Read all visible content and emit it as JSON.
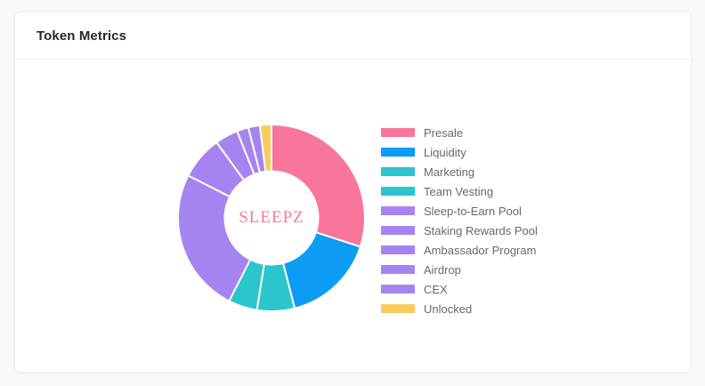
{
  "card": {
    "title": "Token Metrics"
  },
  "colors": {
    "page_background": "#f8f8fa",
    "card_background": "#ffffff",
    "title_text": "#24292f",
    "legend_text": "#65696e",
    "center_label_text": "#f8799c"
  },
  "chart_data": {
    "type": "pie",
    "subtype": "donut",
    "title": "Token Metrics",
    "center_label": "SLEEPZ",
    "categories": [
      "Presale",
      "Liquidity",
      "Marketing",
      "Team Vesting",
      "Sleep-to-Earn Pool",
      "Staking Rewards Pool",
      "Ambassador Program",
      "Airdrop",
      "CEX",
      "Unlocked"
    ],
    "values": [
      30,
      16,
      6.5,
      5,
      25,
      7.5,
      4,
      2,
      2,
      2
    ],
    "unit": "%",
    "colors": [
      "#f8769b",
      "#0d9cf3",
      "#2bc5ce",
      "#2bc5ce",
      "#a684f0",
      "#a684f0",
      "#a684f0",
      "#a684f0",
      "#a684f0",
      "#f9cb5f"
    ],
    "start_angle_deg": 0,
    "direction": "clockwise",
    "inner_radius_ratio": 0.5,
    "slice_border_color": "#ffffff",
    "slice_border_width": 2,
    "legend_position": "right",
    "legend_marker": "rect"
  }
}
